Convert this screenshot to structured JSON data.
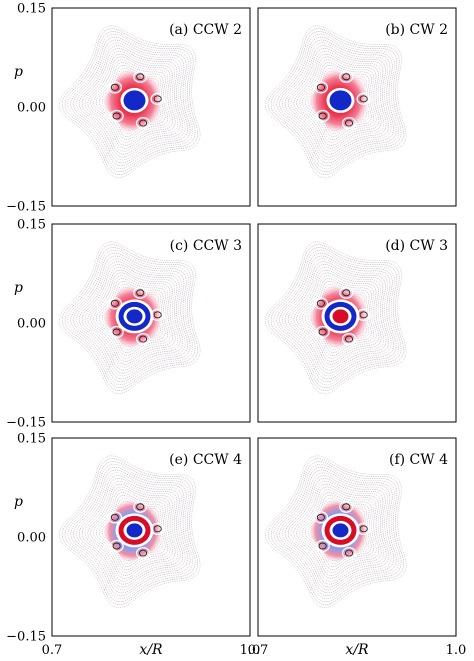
{
  "chart_data": {
    "type": "heatmap",
    "layout": {
      "rows": 3,
      "cols": 2
    },
    "ylabel": "p",
    "xlabel": "x/R",
    "xlim": [
      0.7,
      1.0
    ],
    "ylim": [
      -0.15,
      0.15
    ],
    "xticks": [
      "0.7",
      "1.0"
    ],
    "yticks": [
      "0.15",
      "0.00",
      "−0.15"
    ],
    "palette": {
      "positive": "#e8102a",
      "negative": "#1a2fd6",
      "background": "#ffffff",
      "contour": "#707080"
    },
    "panels": [
      {
        "title": "(a) CCW 2",
        "center_sign": "negative",
        "ring_sign": "none",
        "outer_sign": "positive",
        "islands": 5
      },
      {
        "title": "(b) CW 2",
        "center_sign": "negative",
        "ring_sign": "none",
        "outer_sign": "positive",
        "islands": 5
      },
      {
        "title": "(c)  CCW 3",
        "center_sign": "negative",
        "ring_sign": "negative",
        "outer_sign": "positive",
        "islands": 5
      },
      {
        "title": "(d)  CW 3",
        "center_sign": "positive",
        "ring_sign": "negative",
        "outer_sign": "positive",
        "islands": 5
      },
      {
        "title": "(e)  CCW 4",
        "center_sign": "negative",
        "ring_sign": "positive",
        "outer_sign": "mixed",
        "islands": 5
      },
      {
        "title": "(f)  CW 4",
        "center_sign": "negative",
        "ring_sign": "positive",
        "outer_sign": "mixed",
        "islands": 5
      }
    ]
  }
}
